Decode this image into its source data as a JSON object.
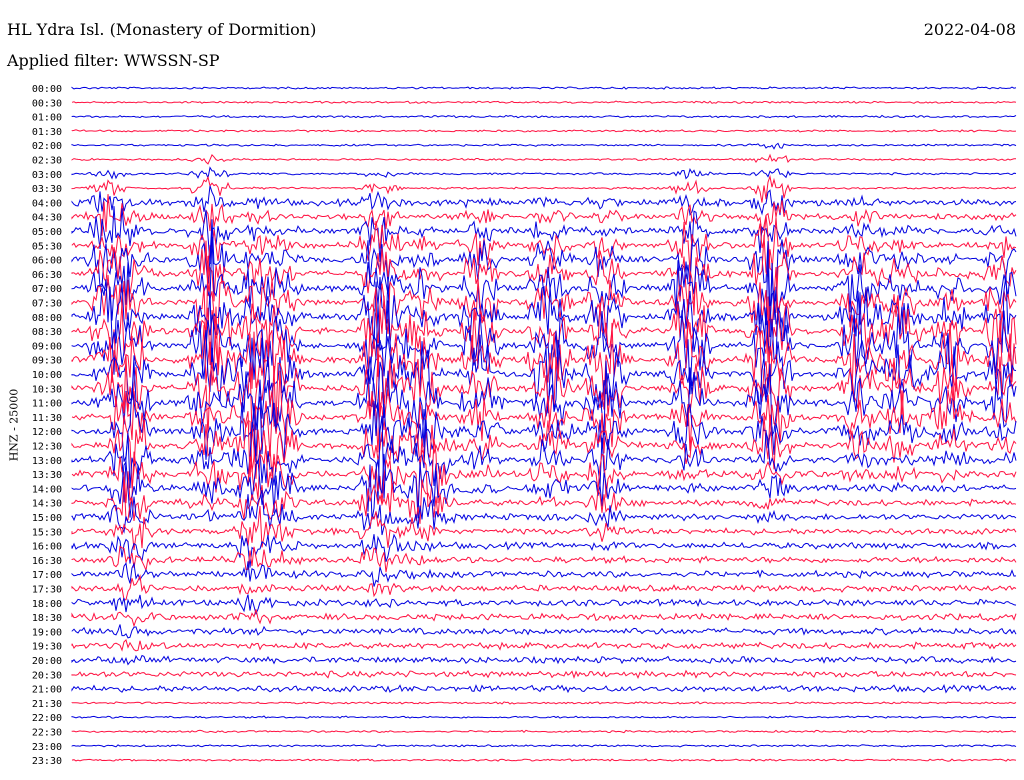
{
  "header": {
    "station": "HL Ydra Isl. (Monastery of Dormition)",
    "filter": "Applied filter: WWSSN-SP",
    "date": "2022-04-08"
  },
  "chart_data": {
    "type": "line",
    "title": "HL Ydra Isl. (Monastery of Dormition)",
    "ylabel": "HNZ - 25000",
    "rows": [
      "00:00",
      "00:30",
      "01:00",
      "01:30",
      "02:00",
      "02:30",
      "03:00",
      "03:30",
      "04:00",
      "04:30",
      "05:00",
      "05:30",
      "06:00",
      "06:30",
      "07:00",
      "07:30",
      "08:00",
      "08:30",
      "09:00",
      "09:30",
      "10:00",
      "10:30",
      "11:00",
      "11:30",
      "12:00",
      "12:30",
      "13:00",
      "13:30",
      "14:00",
      "14:30",
      "15:00",
      "15:30",
      "16:00",
      "16:30",
      "17:00",
      "17:30",
      "18:00",
      "18:30",
      "19:00",
      "19:30",
      "20:00",
      "20:30",
      "21:00",
      "21:30",
      "22:00",
      "22:30",
      "23:00",
      "23:30"
    ],
    "colors": [
      "#0000e0",
      "#ff1040"
    ],
    "grid": false
  }
}
